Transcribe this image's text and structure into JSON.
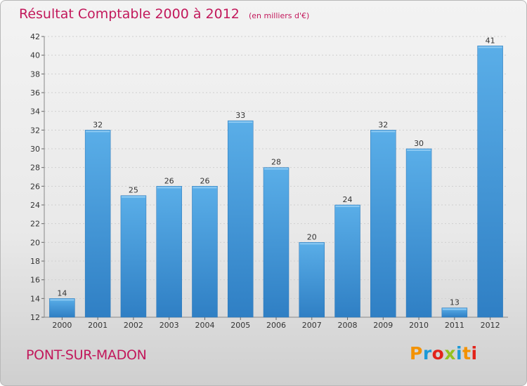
{
  "header": {
    "title": "Résultat Comptable 2000 à 2012",
    "subtitle": "(en milliers d'€)"
  },
  "footer": {
    "location": "PONT-SUR-MADON",
    "logo": {
      "text": "Proxiti",
      "letters": [
        "P",
        "r",
        "o",
        "x",
        "i",
        "t",
        "i"
      ],
      "colors": [
        "#f39200",
        "#1d9ad6",
        "#e2231a",
        "#95c11f",
        "#1d9ad6",
        "#f39200",
        "#e2231a"
      ]
    }
  },
  "colors": {
    "bar": "#3b8fd6",
    "bar_light": "#5aaee8",
    "title": "#c2185b"
  },
  "chart_data": {
    "type": "bar",
    "categories": [
      "2000",
      "2001",
      "2002",
      "2003",
      "2004",
      "2005",
      "2006",
      "2007",
      "2008",
      "2009",
      "2010",
      "2011",
      "2012"
    ],
    "values": [
      14,
      32,
      25,
      26,
      26,
      33,
      28,
      20,
      24,
      32,
      30,
      13,
      41
    ],
    "title": "Résultat Comptable 2000 à 2012",
    "subtitle": "(en milliers d'€)",
    "xlabel": "",
    "ylabel": "",
    "ylim": [
      12,
      42
    ],
    "yticks": [
      12,
      14,
      16,
      18,
      20,
      22,
      24,
      26,
      28,
      30,
      32,
      34,
      36,
      38,
      40,
      42
    ],
    "grid": true,
    "data_labels": true
  }
}
